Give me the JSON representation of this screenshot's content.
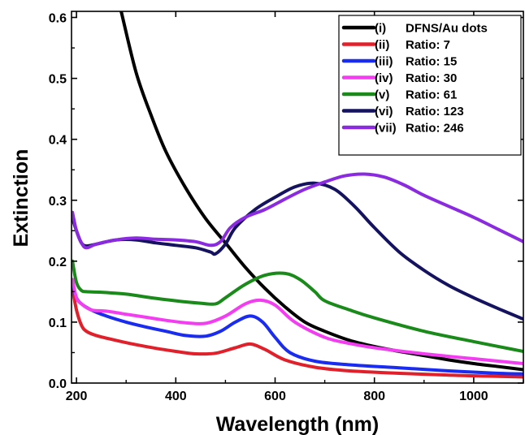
{
  "chart_data": {
    "type": "line",
    "xlabel": "Wavelength (nm)",
    "ylabel": "Extinction",
    "xlim": [
      190,
      1100
    ],
    "ylim": [
      0,
      0.61
    ],
    "xticks": [
      200,
      400,
      600,
      800,
      1000
    ],
    "yticks": [
      0.0,
      0.1,
      0.2,
      0.3,
      0.4,
      0.5,
      0.6
    ],
    "ytick_labels": [
      "0.0",
      "0.1",
      "0.2",
      "0.3",
      "0.4",
      "0.5",
      "0.6"
    ],
    "grid": false,
    "legend_position": "top-right",
    "series": [
      {
        "name": "DFNS/Au dots",
        "label": "(i)",
        "color": "#000000",
        "x": [
          290,
          320,
          350,
          380,
          420,
          460,
          500,
          540,
          580,
          620,
          660,
          700,
          750,
          800,
          850,
          900,
          950,
          1000,
          1050,
          1100
        ],
        "y": [
          0.61,
          0.51,
          0.44,
          0.38,
          0.32,
          0.27,
          0.23,
          0.19,
          0.155,
          0.125,
          0.1,
          0.085,
          0.07,
          0.06,
          0.052,
          0.045,
          0.038,
          0.032,
          0.027,
          0.022
        ]
      },
      {
        "name": "Ratio: 7",
        "label": "(ii)",
        "color": "#e0202a",
        "x": [
          192,
          200,
          210,
          220,
          240,
          280,
          320,
          360,
          400,
          440,
          480,
          520,
          550,
          580,
          620,
          680,
          750,
          850,
          950,
          1050,
          1100
        ],
        "y": [
          0.155,
          0.12,
          0.095,
          0.085,
          0.078,
          0.07,
          0.063,
          0.057,
          0.052,
          0.048,
          0.049,
          0.058,
          0.064,
          0.055,
          0.038,
          0.026,
          0.02,
          0.016,
          0.013,
          0.011,
          0.01
        ]
      },
      {
        "name": "Ratio: 15",
        "label": "(iii)",
        "color": "#1a2cf0",
        "x": [
          192,
          200,
          210,
          230,
          260,
          300,
          340,
          380,
          420,
          460,
          490,
          520,
          550,
          575,
          600,
          630,
          680,
          750,
          850,
          950,
          1050,
          1100
        ],
        "y": [
          0.16,
          0.14,
          0.13,
          0.12,
          0.11,
          0.1,
          0.092,
          0.085,
          0.078,
          0.077,
          0.085,
          0.1,
          0.11,
          0.1,
          0.075,
          0.05,
          0.036,
          0.03,
          0.025,
          0.02,
          0.016,
          0.015
        ]
      },
      {
        "name": "Ratio: 30",
        "label": "(iv)",
        "color": "#f23ef0",
        "x": [
          192,
          200,
          210,
          230,
          260,
          300,
          340,
          380,
          420,
          460,
          500,
          540,
          570,
          600,
          640,
          700,
          750,
          800,
          900,
          1000,
          1100
        ],
        "y": [
          0.17,
          0.14,
          0.13,
          0.12,
          0.118,
          0.113,
          0.108,
          0.103,
          0.099,
          0.098,
          0.11,
          0.13,
          0.136,
          0.128,
          0.1,
          0.075,
          0.065,
          0.058,
          0.048,
          0.04,
          0.032
        ]
      },
      {
        "name": "Ratio: 61",
        "label": "(v)",
        "color": "#1a8a1a",
        "x": [
          192,
          200,
          210,
          220,
          250,
          300,
          350,
          400,
          450,
          480,
          500,
          540,
          580,
          620,
          650,
          680,
          700,
          750,
          800,
          900,
          1000,
          1100
        ],
        "y": [
          0.2,
          0.165,
          0.152,
          0.15,
          0.149,
          0.146,
          0.14,
          0.135,
          0.131,
          0.13,
          0.14,
          0.162,
          0.177,
          0.18,
          0.17,
          0.15,
          0.135,
          0.12,
          0.107,
          0.085,
          0.068,
          0.052
        ]
      },
      {
        "name": "Ratio: 123",
        "label": "(vi)",
        "color": "#15135f",
        "x": [
          192,
          200,
          210,
          220,
          240,
          280,
          320,
          360,
          400,
          440,
          470,
          480,
          500,
          520,
          560,
          600,
          640,
          680,
          720,
          760,
          800,
          850,
          900,
          950,
          1000,
          1050,
          1100
        ],
        "y": [
          0.27,
          0.25,
          0.23,
          0.225,
          0.228,
          0.235,
          0.235,
          0.23,
          0.226,
          0.222,
          0.215,
          0.212,
          0.228,
          0.255,
          0.285,
          0.305,
          0.322,
          0.328,
          0.318,
          0.29,
          0.255,
          0.215,
          0.185,
          0.16,
          0.14,
          0.122,
          0.105
        ]
      },
      {
        "name": "Ratio: 246",
        "label": "(vii)",
        "color": "#8b2be0",
        "x": [
          192,
          200,
          210,
          220,
          240,
          280,
          320,
          360,
          400,
          440,
          470,
          490,
          510,
          540,
          580,
          620,
          660,
          700,
          740,
          780,
          820,
          860,
          900,
          950,
          1000,
          1050,
          1100
        ],
        "y": [
          0.28,
          0.25,
          0.23,
          0.222,
          0.228,
          0.235,
          0.238,
          0.236,
          0.235,
          0.232,
          0.226,
          0.232,
          0.255,
          0.272,
          0.285,
          0.302,
          0.318,
          0.33,
          0.34,
          0.343,
          0.338,
          0.325,
          0.308,
          0.29,
          0.272,
          0.252,
          0.232
        ]
      }
    ]
  }
}
